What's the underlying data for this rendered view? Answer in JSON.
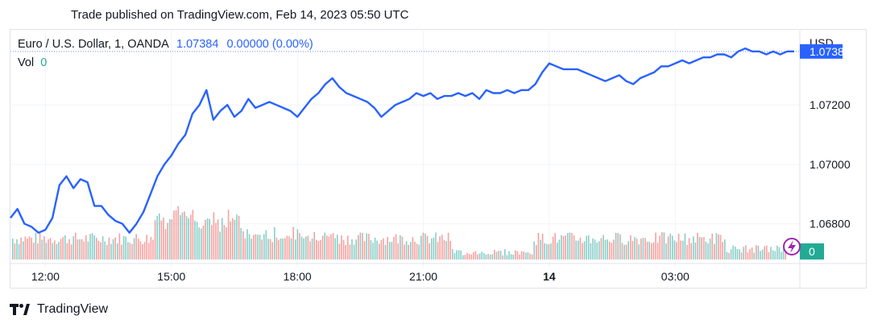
{
  "header": {
    "published": "Trade published on TradingView.com, Feb 14, 2023 05:50 UTC"
  },
  "legend": {
    "symbol": "Euro / U.S. Dollar, 1, OANDA",
    "price": "1.07384",
    "change": "0.00000 (0.00%)",
    "vol_label": "Vol",
    "vol_value": "0"
  },
  "brand": {
    "name": "TradingView",
    "icon": "tradingview-logo-icon"
  },
  "colors": {
    "line": "#2962ff",
    "vol_up": "#26a69a",
    "vol_down": "#ef5350",
    "axis_text": "#131722",
    "badge_price": "#2962ff",
    "badge_vol": "#22ab94"
  },
  "chart_data": {
    "type": "line",
    "ylabel_unit": "USD",
    "ylim": [
      1.0668,
      1.0745
    ],
    "y_ticks": [
      "1.06800",
      "1.07000",
      "1.07200"
    ],
    "x_ticks": [
      {
        "label": "12:00",
        "bold": false
      },
      {
        "label": "15:00",
        "bold": false
      },
      {
        "label": "18:00",
        "bold": false
      },
      {
        "label": "21:00",
        "bold": false
      },
      {
        "label": "14",
        "bold": true
      },
      {
        "label": "03:00",
        "bold": false
      }
    ],
    "price_badge": "1.07384",
    "vol_badge": "0",
    "series": [
      {
        "name": "EURUSD",
        "x": [
          "11:10",
          "11:20",
          "11:30",
          "11:40",
          "11:50",
          "12:00",
          "12:10",
          "12:20",
          "12:30",
          "12:40",
          "12:50",
          "13:00",
          "13:10",
          "13:20",
          "13:30",
          "13:40",
          "13:50",
          "14:00",
          "14:10",
          "14:20",
          "14:30",
          "14:40",
          "14:50",
          "15:00",
          "15:10",
          "15:20",
          "15:30",
          "15:40",
          "15:50",
          "16:00",
          "16:10",
          "16:20",
          "16:30",
          "16:40",
          "16:50",
          "17:00",
          "17:10",
          "17:20",
          "17:30",
          "17:40",
          "17:50",
          "18:00",
          "18:10",
          "18:20",
          "18:30",
          "18:40",
          "18:50",
          "19:00",
          "19:10",
          "19:20",
          "19:30",
          "19:40",
          "19:50",
          "20:00",
          "20:10",
          "20:20",
          "20:30",
          "20:40",
          "20:50",
          "21:00",
          "21:10",
          "21:20",
          "21:30",
          "21:40",
          "21:50",
          "22:00",
          "22:10",
          "22:20",
          "22:30",
          "22:40",
          "22:50",
          "23:00",
          "23:10",
          "23:20",
          "23:30",
          "23:40",
          "23:50",
          "00:00",
          "00:10",
          "00:20",
          "00:30",
          "00:40",
          "00:50",
          "01:00",
          "01:10",
          "01:20",
          "01:30",
          "01:40",
          "01:50",
          "02:00",
          "02:10",
          "02:20",
          "02:30",
          "02:40",
          "02:50",
          "03:00",
          "03:10",
          "03:20",
          "03:30",
          "03:40",
          "03:50",
          "04:00",
          "04:10",
          "04:20",
          "04:30",
          "04:40",
          "04:50",
          "05:00",
          "05:10",
          "05:20",
          "05:30",
          "05:40",
          "05:50"
        ],
        "values": [
          1.0682,
          1.0685,
          1.068,
          1.0679,
          1.0677,
          1.0678,
          1.0682,
          1.0693,
          1.0696,
          1.0692,
          1.0695,
          1.0694,
          1.0686,
          1.0686,
          1.0683,
          1.0681,
          1.068,
          1.0677,
          1.068,
          1.0684,
          1.069,
          1.0696,
          1.07,
          1.0703,
          1.0707,
          1.071,
          1.0717,
          1.072,
          1.0725,
          1.0715,
          1.0718,
          1.072,
          1.0716,
          1.0718,
          1.0722,
          1.0719,
          1.072,
          1.0721,
          1.072,
          1.0719,
          1.0718,
          1.0716,
          1.0719,
          1.0722,
          1.0724,
          1.0727,
          1.0729,
          1.0726,
          1.0724,
          1.0723,
          1.0722,
          1.0721,
          1.0719,
          1.0716,
          1.0718,
          1.072,
          1.0721,
          1.0722,
          1.0724,
          1.0723,
          1.0724,
          1.0722,
          1.0723,
          1.0723,
          1.0724,
          1.0723,
          1.0724,
          1.0722,
          1.0725,
          1.0724,
          1.0724,
          1.0725,
          1.0724,
          1.0725,
          1.0725,
          1.0727,
          1.0731,
          1.0734,
          1.0733,
          1.0732,
          1.0732,
          1.0732,
          1.0731,
          1.073,
          1.0729,
          1.0728,
          1.0729,
          1.073,
          1.0728,
          1.0727,
          1.0729,
          1.073,
          1.0731,
          1.0733,
          1.0733,
          1.0734,
          1.0735,
          1.0734,
          1.0735,
          1.0736,
          1.0736,
          1.0737,
          1.0737,
          1.0736,
          1.0738,
          1.0739,
          1.0738,
          1.0738,
          1.0737,
          1.0738,
          1.0737,
          1.0738,
          1.0738
        ]
      }
    ]
  }
}
